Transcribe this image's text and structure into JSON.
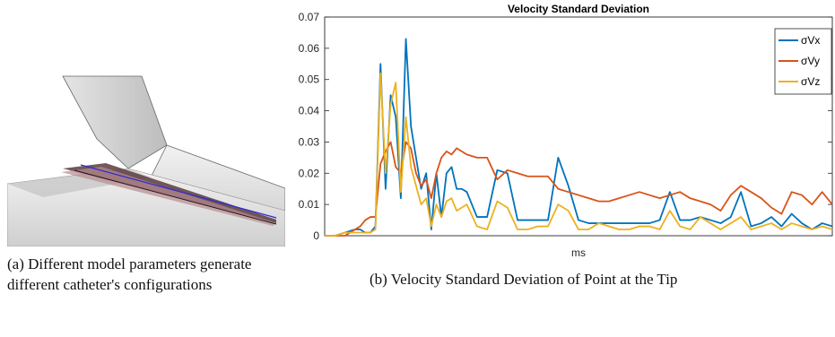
{
  "captions": {
    "a": "(a) Different model parameters generate different catheter's configurations",
    "b": "(b) Velocity Standard Deviation of Point at the Tip"
  },
  "chart_data": {
    "type": "line",
    "title": "Velocity Standard Deviation",
    "xlabel": "ms",
    "ylabel": "",
    "ylim": [
      0,
      0.07
    ],
    "yticks": [
      "0",
      "0.01",
      "0.02",
      "0.03",
      "0.04",
      "0.05",
      "0.06",
      "0.07"
    ],
    "legend_position": "top-right",
    "grid": false,
    "x": [
      0,
      2,
      4,
      6,
      7,
      8,
      9,
      10,
      11,
      12,
      13,
      14,
      15,
      16,
      17,
      18,
      19,
      20,
      21,
      22,
      23,
      24,
      25,
      26,
      27,
      28,
      30,
      32,
      34,
      36,
      38,
      40,
      42,
      44,
      46,
      48,
      50,
      52,
      54,
      56,
      58,
      60,
      62,
      64,
      66,
      68,
      70,
      72,
      74,
      76,
      78,
      80,
      82,
      84,
      86,
      88,
      90,
      92,
      94,
      96,
      98,
      100
    ],
    "series": [
      {
        "name": "σVx",
        "color": "#0072BD",
        "values": [
          0,
          0,
          0.001,
          0.002,
          0.002,
          0.001,
          0.001,
          0.003,
          0.055,
          0.015,
          0.045,
          0.038,
          0.012,
          0.063,
          0.035,
          0.025,
          0.015,
          0.02,
          0.002,
          0.02,
          0.006,
          0.02,
          0.022,
          0.015,
          0.015,
          0.014,
          0.006,
          0.006,
          0.021,
          0.02,
          0.005,
          0.005,
          0.005,
          0.005,
          0.025,
          0.016,
          0.005,
          0.004,
          0.004,
          0.004,
          0.004,
          0.004,
          0.004,
          0.004,
          0.005,
          0.014,
          0.005,
          0.005,
          0.006,
          0.005,
          0.004,
          0.006,
          0.014,
          0.003,
          0.004,
          0.006,
          0.003,
          0.007,
          0.004,
          0.002,
          0.004,
          0.003
        ]
      },
      {
        "name": "σVy",
        "color": "#D95319",
        "values": [
          0,
          0,
          0,
          0.002,
          0.003,
          0.005,
          0.006,
          0.006,
          0.023,
          0.027,
          0.03,
          0.022,
          0.02,
          0.03,
          0.028,
          0.02,
          0.016,
          0.018,
          0.012,
          0.02,
          0.025,
          0.027,
          0.026,
          0.028,
          0.027,
          0.026,
          0.025,
          0.025,
          0.018,
          0.021,
          0.02,
          0.019,
          0.019,
          0.019,
          0.015,
          0.014,
          0.013,
          0.012,
          0.011,
          0.011,
          0.012,
          0.013,
          0.014,
          0.013,
          0.012,
          0.013,
          0.014,
          0.012,
          0.011,
          0.01,
          0.008,
          0.013,
          0.016,
          0.014,
          0.012,
          0.009,
          0.007,
          0.014,
          0.013,
          0.01,
          0.014,
          0.01
        ]
      },
      {
        "name": "σVz",
        "color": "#EDB120",
        "values": [
          0,
          0,
          0.001,
          0.001,
          0.001,
          0.001,
          0.001,
          0.002,
          0.052,
          0.02,
          0.042,
          0.049,
          0.014,
          0.038,
          0.022,
          0.016,
          0.01,
          0.012,
          0.003,
          0.01,
          0.006,
          0.011,
          0.012,
          0.008,
          0.009,
          0.01,
          0.003,
          0.002,
          0.011,
          0.009,
          0.002,
          0.002,
          0.003,
          0.003,
          0.01,
          0.008,
          0.002,
          0.002,
          0.004,
          0.003,
          0.002,
          0.002,
          0.003,
          0.003,
          0.002,
          0.008,
          0.003,
          0.002,
          0.006,
          0.004,
          0.002,
          0.004,
          0.006,
          0.002,
          0.003,
          0.004,
          0.002,
          0.004,
          0.003,
          0.002,
          0.003,
          0.002
        ]
      }
    ]
  }
}
